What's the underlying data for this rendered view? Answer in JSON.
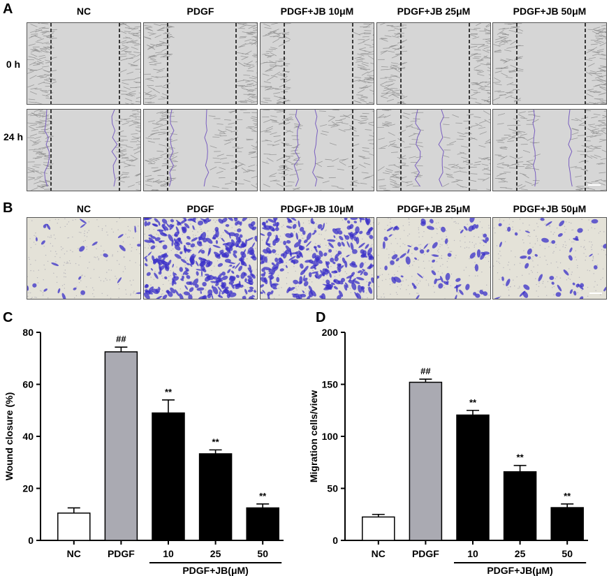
{
  "panels": {
    "a": {
      "letter": "A",
      "columns": [
        "NC",
        "PDGF",
        "PDGF+JB 10μM",
        "PDGF+JB 25μM",
        "PDGF+JB 50μM"
      ],
      "rows": [
        "0 h",
        "24 h"
      ]
    },
    "b": {
      "letter": "B",
      "columns": [
        "NC",
        "PDGF",
        "PDGF+JB 10μM",
        "PDGF+JB 25μM",
        "PDGF+JB 50μM"
      ]
    },
    "c": {
      "letter": "C"
    },
    "d": {
      "letter": "D"
    }
  },
  "colors": {
    "nc_fill": "#ffffff",
    "pdgf_fill": "#aaaab2",
    "jb_fill": "#000000",
    "wound_bg": "#d6d6d6",
    "transwell_bg": "#e4e2d8",
    "stain": "#3a2fc8",
    "migration_line": "#7a5fc0"
  },
  "chart_data": [
    {
      "type": "bar",
      "categories": [
        "NC",
        "PDGF",
        "10",
        "25",
        "50"
      ],
      "values": [
        10.5,
        72.5,
        49,
        33.3,
        12.5
      ],
      "errors": [
        2.0,
        1.8,
        5.0,
        1.5,
        1.5
      ],
      "significance": [
        "",
        "##",
        "**",
        "**",
        "**"
      ],
      "ylabel": "Wound closure (%)",
      "ylim": [
        0,
        80
      ],
      "yticks": [
        0,
        20,
        40,
        60,
        80
      ],
      "group_label": "PDGF+JB(μM)",
      "grid": false
    },
    {
      "type": "bar",
      "categories": [
        "NC",
        "PDGF",
        "10",
        "25",
        "50"
      ],
      "values": [
        22.5,
        152,
        120.5,
        66,
        31.5
      ],
      "errors": [
        2.5,
        3.0,
        4.5,
        6.0,
        3.5
      ],
      "significance": [
        "",
        "##",
        "**",
        "**",
        "**"
      ],
      "ylabel": "Migration cells/view",
      "ylim": [
        0,
        200
      ],
      "yticks": [
        0,
        50,
        100,
        150,
        200
      ],
      "group_label": "PDGF+JB(μM)",
      "grid": false
    }
  ]
}
